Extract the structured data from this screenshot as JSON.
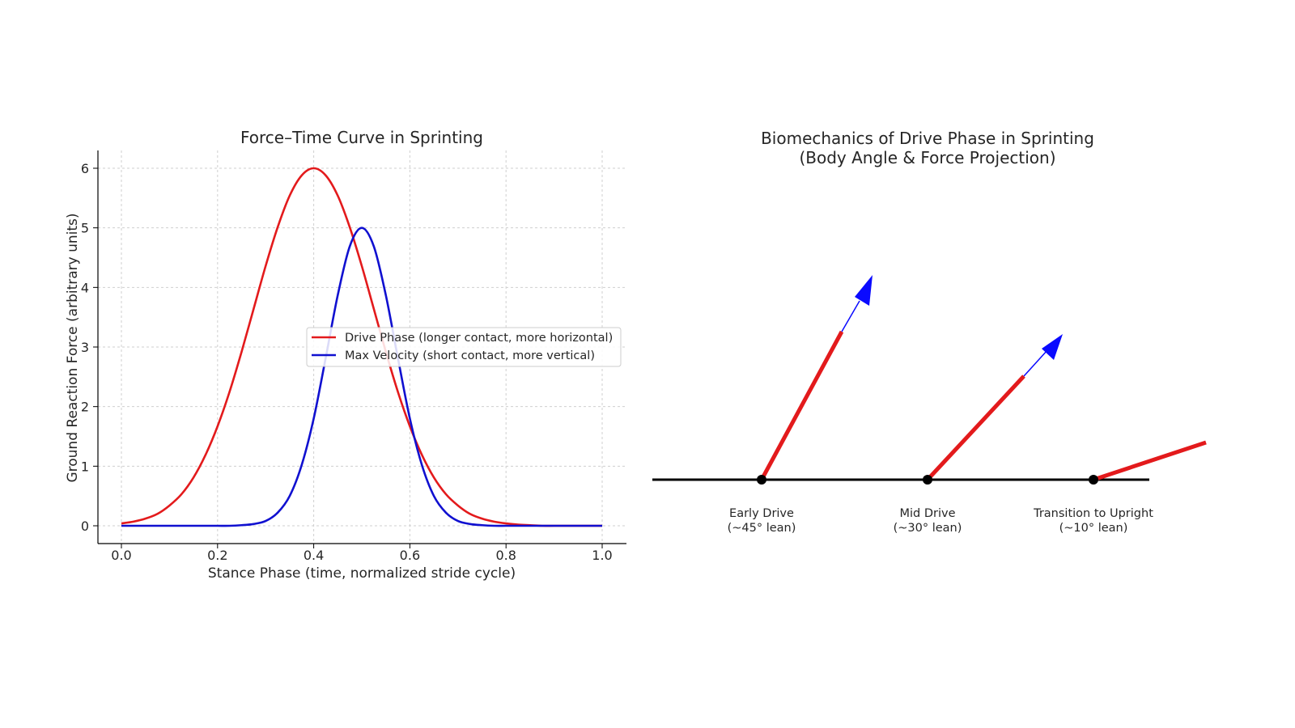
{
  "chart_data": [
    {
      "type": "line",
      "title": "Force–Time Curve in Sprinting",
      "xlabel": "Stance Phase (time, normalized stride cycle)",
      "ylabel": "Ground Reaction Force (arbitrary units)",
      "xlim": [
        -0.05,
        1.05
      ],
      "ylim": [
        -0.3,
        6.3
      ],
      "xticks": [
        "0.0",
        "0.2",
        "0.4",
        "0.6",
        "0.8",
        "1.0"
      ],
      "yticks": [
        "0",
        "1",
        "2",
        "3",
        "4",
        "5",
        "6"
      ],
      "grid": true,
      "legend_position": "center-right",
      "x": [
        0,
        0.025,
        0.05,
        0.075,
        0.1,
        0.125,
        0.15,
        0.175,
        0.2,
        0.225,
        0.25,
        0.275,
        0.3,
        0.325,
        0.35,
        0.375,
        0.4,
        0.425,
        0.45,
        0.475,
        0.5,
        0.525,
        0.55,
        0.575,
        0.6,
        0.625,
        0.65,
        0.675,
        0.7,
        0.725,
        0.75,
        0.775,
        0.8,
        0.825,
        0.85,
        0.875,
        0.9,
        0.925,
        0.95,
        0.975,
        1.0
      ],
      "series": [
        {
          "name": "Drive Phase (longer contact, more horizontal)",
          "color": "#e31a1c",
          "values": [
            0.04,
            0.07,
            0.12,
            0.2,
            0.34,
            0.53,
            0.81,
            1.19,
            1.67,
            2.25,
            2.92,
            3.64,
            4.36,
            5.01,
            5.54,
            5.88,
            6.0,
            5.88,
            5.54,
            5.01,
            4.36,
            3.64,
            2.92,
            2.25,
            1.67,
            1.19,
            0.81,
            0.53,
            0.34,
            0.2,
            0.12,
            0.07,
            0.04,
            0.02,
            0.01,
            0,
            0,
            0,
            0,
            0,
            0
          ]
        },
        {
          "name": "Max Velocity (short contact, more vertical)",
          "color": "#1010d0",
          "values": [
            0,
            0,
            0,
            0,
            0,
            0,
            0,
            0,
            0,
            0,
            0.01,
            0.03,
            0.08,
            0.22,
            0.5,
            1.02,
            1.8,
            2.82,
            3.87,
            4.69,
            5.0,
            4.69,
            3.87,
            2.82,
            1.8,
            1.02,
            0.5,
            0.22,
            0.08,
            0.03,
            0.01,
            0,
            0,
            0,
            0,
            0,
            0,
            0,
            0,
            0,
            0
          ]
        }
      ]
    }
  ],
  "diagram": {
    "title_line1": "Biomechanics of Drive Phase in Sprinting",
    "title_line2": "(Body Angle & Force Projection)",
    "colors": {
      "body": "#e31a1c",
      "force": "#0a0aff",
      "ground": "#000000"
    },
    "stages": [
      {
        "label": "Early Drive",
        "sublabel": "(~45° lean)"
      },
      {
        "label": "Mid Drive",
        "sublabel": "(~30° lean)"
      },
      {
        "label": "Transition to Upright",
        "sublabel": "(~10° lean)"
      }
    ]
  }
}
